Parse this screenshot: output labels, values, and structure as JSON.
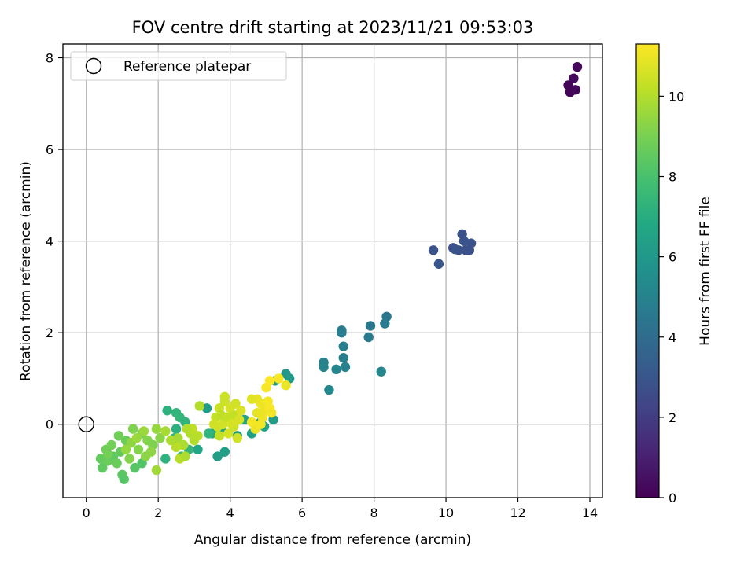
{
  "chart_data": {
    "type": "scatter",
    "title": "FOV centre drift starting at 2023/11/21 09:53:03",
    "xlabel": "Angular distance from reference (arcmin)",
    "ylabel": "Rotation from reference (arcmin)",
    "xlim": [
      -0.65,
      14.35
    ],
    "ylim": [
      -1.6,
      8.3
    ],
    "xticks": [
      0,
      2,
      4,
      6,
      8,
      10,
      12,
      14
    ],
    "yticks": [
      0,
      2,
      4,
      6,
      8
    ],
    "grid": true,
    "legend": {
      "position": "top-left",
      "entries": [
        "Reference platepar"
      ]
    },
    "reference_point": {
      "x": 0,
      "y": 0,
      "label": "Reference platepar"
    },
    "colorbar": {
      "label": "Hours from first FF file",
      "range": [
        0,
        11.3
      ],
      "ticks": [
        0,
        2,
        4,
        6,
        8,
        10
      ],
      "colormap": "viridis"
    },
    "series": [
      {
        "points": [
          [
            13.45,
            7.25,
            0.1
          ],
          [
            13.65,
            7.8,
            0.2
          ],
          [
            13.55,
            7.55,
            0.3
          ],
          [
            13.4,
            7.4,
            0.15
          ],
          [
            13.6,
            7.3,
            0.25
          ],
          [
            10.45,
            4.15,
            2.8
          ],
          [
            10.7,
            3.95,
            2.9
          ],
          [
            10.2,
            3.85,
            2.7
          ],
          [
            10.35,
            3.8,
            2.85
          ],
          [
            10.5,
            4.0,
            2.95
          ],
          [
            10.65,
            3.8,
            2.75
          ],
          [
            10.55,
            3.8,
            2.8
          ],
          [
            9.65,
            3.8,
            2.9
          ],
          [
            9.8,
            3.5,
            3.0
          ],
          [
            10.25,
            3.82,
            2.9
          ],
          [
            8.35,
            2.35,
            4.5
          ],
          [
            8.3,
            2.2,
            4.6
          ],
          [
            7.9,
            2.15,
            4.55
          ],
          [
            7.85,
            1.9,
            4.65
          ],
          [
            7.1,
            2.05,
            4.7
          ],
          [
            7.1,
            2.0,
            4.8
          ],
          [
            7.15,
            1.7,
            4.9
          ],
          [
            7.15,
            1.45,
            4.85
          ],
          [
            7.2,
            1.25,
            4.95
          ],
          [
            6.6,
            1.35,
            5.0
          ],
          [
            6.6,
            1.25,
            5.05
          ],
          [
            6.95,
            1.2,
            5.1
          ],
          [
            8.2,
            1.15,
            5.2
          ],
          [
            6.75,
            0.75,
            5.3
          ],
          [
            5.55,
            1.1,
            6.0
          ],
          [
            5.65,
            1.0,
            6.1
          ],
          [
            5.25,
            0.95,
            6.3
          ],
          [
            5.2,
            0.1,
            6.2
          ],
          [
            4.6,
            -0.2,
            6.4
          ],
          [
            4.4,
            0.1,
            6.5
          ],
          [
            4.2,
            -0.25,
            6.6
          ],
          [
            3.65,
            -0.7,
            6.3
          ],
          [
            3.85,
            -0.6,
            6.4
          ],
          [
            3.1,
            -0.55,
            6.7
          ],
          [
            3.35,
            0.35,
            6.2
          ],
          [
            3.5,
            -0.2,
            6.8
          ],
          [
            3.75,
            -0.1,
            6.6
          ],
          [
            4.85,
            0.05,
            6.4
          ],
          [
            4.95,
            -0.05,
            6.5
          ],
          [
            2.25,
            0.3,
            7.2
          ],
          [
            2.5,
            0.25,
            7.3
          ],
          [
            2.6,
            0.15,
            7.4
          ],
          [
            2.2,
            -0.75,
            7.2
          ],
          [
            2.5,
            -0.1,
            7.1
          ],
          [
            2.75,
            0.05,
            7.3
          ],
          [
            2.45,
            -0.3,
            7.5
          ],
          [
            2.85,
            -0.55,
            7.4
          ],
          [
            2.65,
            -0.7,
            7.6
          ],
          [
            3.4,
            -0.2,
            7.3
          ],
          [
            1.55,
            -0.85,
            8.2
          ],
          [
            1.35,
            -0.95,
            8.3
          ],
          [
            1.0,
            -1.1,
            8.4
          ],
          [
            1.05,
            -1.2,
            8.3
          ],
          [
            0.45,
            -0.95,
            8.5
          ],
          [
            0.4,
            -0.75,
            8.6
          ],
          [
            0.6,
            -0.8,
            8.7
          ],
          [
            0.75,
            -0.7,
            8.5
          ],
          [
            0.55,
            -0.55,
            8.8
          ],
          [
            0.7,
            -0.45,
            8.9
          ],
          [
            0.95,
            -0.6,
            8.6
          ],
          [
            1.1,
            -0.35,
            8.7
          ],
          [
            0.9,
            -0.25,
            8.8
          ],
          [
            0.6,
            -0.65,
            8.9
          ],
          [
            0.85,
            -0.85,
            8.7
          ],
          [
            1.3,
            -0.1,
            9.1
          ],
          [
            1.55,
            -0.2,
            9.0
          ],
          [
            1.7,
            -0.35,
            9.2
          ],
          [
            1.85,
            -0.45,
            9.1
          ],
          [
            2.05,
            -0.3,
            9.3
          ],
          [
            1.45,
            -0.55,
            9.2
          ],
          [
            1.25,
            -0.4,
            9.4
          ],
          [
            1.65,
            -0.7,
            9.3
          ],
          [
            1.95,
            -0.1,
            9.5
          ],
          [
            1.2,
            -0.75,
            9.2
          ],
          [
            1.4,
            -0.3,
            9.6
          ],
          [
            1.1,
            -0.55,
            9.5
          ],
          [
            1.8,
            -0.6,
            9.4
          ],
          [
            1.6,
            -0.15,
            9.6
          ],
          [
            1.95,
            -1.0,
            9.7
          ],
          [
            2.55,
            -0.3,
            9.8
          ],
          [
            2.7,
            -0.45,
            9.9
          ],
          [
            2.9,
            -0.2,
            10.0
          ],
          [
            2.6,
            -0.75,
            10.1
          ],
          [
            2.75,
            -0.7,
            9.9
          ],
          [
            3.0,
            -0.35,
            10.0
          ],
          [
            2.95,
            -0.1,
            10.2
          ],
          [
            3.15,
            0.4,
            10.0
          ],
          [
            2.5,
            -0.5,
            10.1
          ],
          [
            2.35,
            -0.35,
            9.9
          ],
          [
            2.2,
            -0.15,
            9.8
          ],
          [
            2.8,
            -0.1,
            10.0
          ],
          [
            3.1,
            -0.25,
            10.1
          ],
          [
            3.6,
            0.15,
            10.3
          ],
          [
            3.7,
            0.35,
            10.4
          ],
          [
            3.75,
            0.2,
            10.2
          ],
          [
            3.65,
            -0.05,
            10.4
          ],
          [
            3.8,
            0.0,
            10.5
          ],
          [
            3.9,
            0.15,
            10.3
          ],
          [
            3.85,
            0.5,
            10.4
          ],
          [
            4.0,
            0.35,
            10.6
          ],
          [
            4.15,
            0.45,
            10.5
          ],
          [
            4.1,
            0.2,
            10.3
          ],
          [
            3.95,
            -0.2,
            10.6
          ],
          [
            4.1,
            -0.05,
            10.4
          ],
          [
            3.7,
            -0.25,
            10.3
          ],
          [
            3.55,
            0.0,
            10.5
          ],
          [
            4.25,
            0.1,
            10.6
          ],
          [
            4.3,
            0.3,
            10.7
          ],
          [
            3.85,
            0.6,
            10.4
          ],
          [
            4.05,
            0.0,
            10.6
          ],
          [
            4.2,
            -0.3,
            10.5
          ],
          [
            4.75,
            0.55,
            10.9
          ],
          [
            4.85,
            0.45,
            11.0
          ],
          [
            4.6,
            0.55,
            10.8
          ],
          [
            4.95,
            0.3,
            11.0
          ],
          [
            5.05,
            0.5,
            11.1
          ],
          [
            5.1,
            0.35,
            11.2
          ],
          [
            5.15,
            0.25,
            11.1
          ],
          [
            4.9,
            0.15,
            11.0
          ],
          [
            4.75,
            0.25,
            10.9
          ],
          [
            4.7,
            -0.1,
            11.0
          ],
          [
            4.85,
            0.0,
            11.1
          ],
          [
            5.0,
            0.8,
            11.2
          ],
          [
            5.1,
            0.95,
            11.3
          ],
          [
            5.35,
            1.0,
            11.2
          ],
          [
            5.55,
            0.85,
            11.0
          ],
          [
            4.6,
            0.05,
            11.1
          ]
        ]
      }
    ]
  }
}
